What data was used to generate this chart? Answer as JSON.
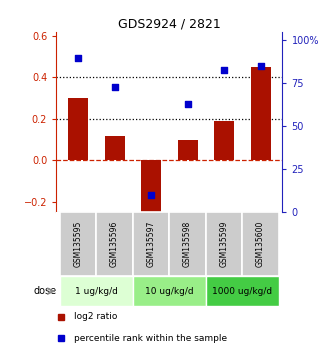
{
  "title": "GDS2924 / 2821",
  "samples": [
    "GSM135595",
    "GSM135596",
    "GSM135597",
    "GSM135598",
    "GSM135599",
    "GSM135600"
  ],
  "log2_ratio": [
    0.3,
    0.12,
    -0.25,
    0.1,
    0.19,
    0.45
  ],
  "percentile_rank": [
    90,
    73,
    10,
    63,
    83,
    85
  ],
  "left_ylim": [
    -0.25,
    0.62
  ],
  "right_ylim": [
    0,
    105
  ],
  "left_yticks": [
    -0.2,
    0.0,
    0.2,
    0.4,
    0.6
  ],
  "right_yticks": [
    0,
    25,
    50,
    75,
    100
  ],
  "right_yticklabels": [
    "0",
    "25",
    "50",
    "75",
    "100%"
  ],
  "dotted_lines": [
    0.4,
    0.2
  ],
  "zero_line": 0.0,
  "bar_color": "#aa1100",
  "square_color": "#0000cc",
  "dose_groups": [
    {
      "label": "1 ug/kg/d",
      "samples": [
        0,
        1
      ],
      "color": "#ddffd4"
    },
    {
      "label": "10 ug/kg/d",
      "samples": [
        2,
        3
      ],
      "color": "#99ee88"
    },
    {
      "label": "1000 ug/kg/d",
      "samples": [
        4,
        5
      ],
      "color": "#44cc44"
    }
  ],
  "sample_bg_color": "#cccccc",
  "left_label_color": "#cc2200",
  "right_label_color": "#2222bb",
  "bar_width": 0.55
}
